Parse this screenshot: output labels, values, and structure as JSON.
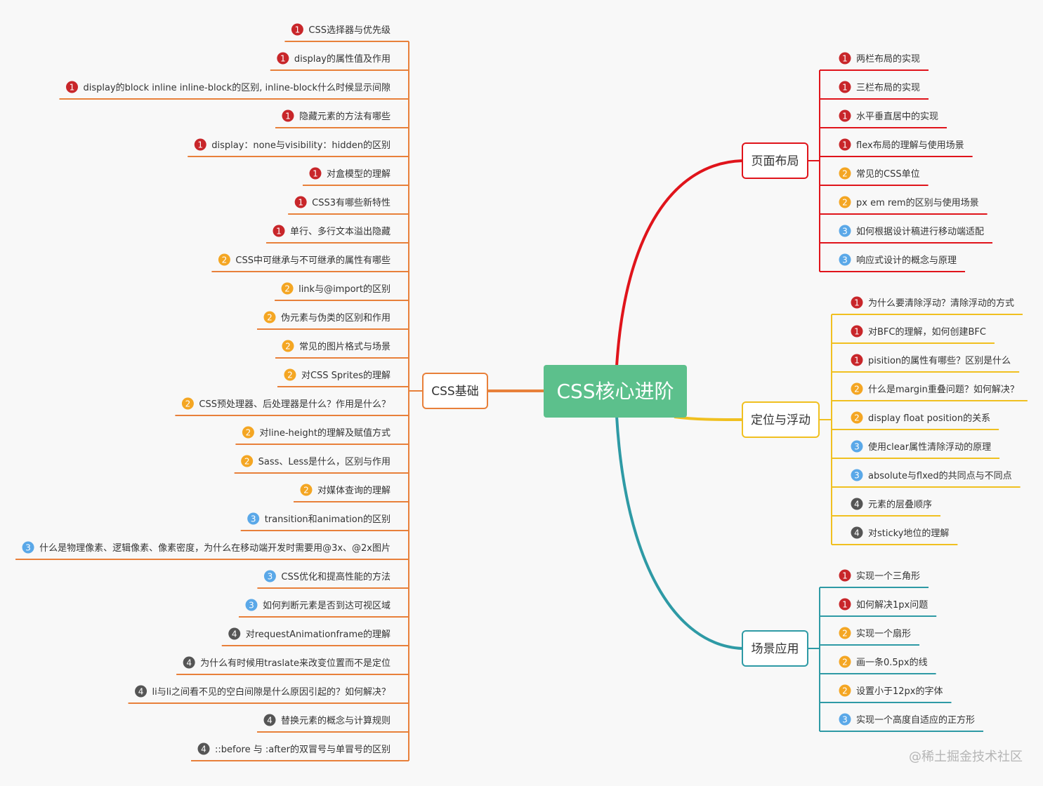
{
  "root": {
    "label": "CSS核心进阶",
    "color": "#5cc08c"
  },
  "colors": {
    "p1": "#c8262a",
    "p2": "#f4a623",
    "p3": "#5aa8e8",
    "p4": "#555555",
    "left_branch": "#e8803a",
    "layout_branch": "#e0141b",
    "float_branch": "#f0c020",
    "scene_branch": "#2e9aa5"
  },
  "left": {
    "label": "CSS基础",
    "items": [
      {
        "p": "1",
        "text": "CSS选择器与优先级"
      },
      {
        "p": "1",
        "text": "display的属性值及作用"
      },
      {
        "p": "1",
        "text": "display的block inline inline-block的区别, inline-block什么时候显示间隙"
      },
      {
        "p": "1",
        "text": "隐藏元素的方法有哪些"
      },
      {
        "p": "1",
        "text": "display：none与visibility：hidden的区别"
      },
      {
        "p": "1",
        "text": "对盒模型的理解"
      },
      {
        "p": "1",
        "text": "CSS3有哪些新特性"
      },
      {
        "p": "1",
        "text": "单行、多行文本溢出隐藏"
      },
      {
        "p": "2",
        "text": "CSS中可继承与不可继承的属性有哪些"
      },
      {
        "p": "2",
        "text": "link与@import的区别"
      },
      {
        "p": "2",
        "text": "伪元素与伪类的区别和作用"
      },
      {
        "p": "2",
        "text": "常见的图片格式与场景"
      },
      {
        "p": "2",
        "text": "对CSS Sprites的理解"
      },
      {
        "p": "2",
        "text": "CSS预处理器、后处理器是什么？作用是什么？"
      },
      {
        "p": "2",
        "text": "对line-height的理解及赋值方式"
      },
      {
        "p": "2",
        "text": "Sass、Less是什么，区别与作用"
      },
      {
        "p": "2",
        "text": "对媒体查询的理解"
      },
      {
        "p": "3",
        "text": "transition和animation的区别"
      },
      {
        "p": "3",
        "text": "什么是物理像素、逻辑像素、像素密度，为什么在移动端开发时需要用@3x、@2x图片"
      },
      {
        "p": "3",
        "text": "CSS优化和提高性能的方法"
      },
      {
        "p": "3",
        "text": "如何判断元素是否到达可视区域"
      },
      {
        "p": "4",
        "text": "对requestAnimationframe的理解"
      },
      {
        "p": "4",
        "text": "为什么有时候用traslate来改变位置而不是定位"
      },
      {
        "p": "4",
        "text": "li与li之间看不见的空白间隙是什么原因引起的？如何解决？"
      },
      {
        "p": "4",
        "text": "替换元素的概念与计算规则"
      },
      {
        "p": "4",
        "text": "::before 与 :after的双冒号与单冒号的区别"
      }
    ]
  },
  "right": [
    {
      "label": "页面布局",
      "items": [
        {
          "p": "1",
          "text": "两栏布局的实现"
        },
        {
          "p": "1",
          "text": "三栏布局的实现"
        },
        {
          "p": "1",
          "text": "水平垂直居中的实现"
        },
        {
          "p": "1",
          "text": "flex布局的理解与使用场景"
        },
        {
          "p": "2",
          "text": "常见的CSS单位"
        },
        {
          "p": "2",
          "text": "px em rem的区别与使用场景"
        },
        {
          "p": "3",
          "text": "如何根据设计稿进行移动端适配"
        },
        {
          "p": "3",
          "text": "响应式设计的概念与原理"
        }
      ]
    },
    {
      "label": "定位与浮动",
      "items": [
        {
          "p": "1",
          "text": "为什么要清除浮动？清除浮动的方式"
        },
        {
          "p": "1",
          "text": "对BFC的理解，如何创建BFC"
        },
        {
          "p": "1",
          "text": "pisition的属性有哪些？区别是什么"
        },
        {
          "p": "2",
          "text": "什么是margin重叠问题？如何解决？"
        },
        {
          "p": "2",
          "text": "display float position的关系"
        },
        {
          "p": "3",
          "text": "使用clear属性清除浮动的原理"
        },
        {
          "p": "3",
          "text": "absolute与flxed的共同点与不同点"
        },
        {
          "p": "4",
          "text": "元素的层叠顺序"
        },
        {
          "p": "4",
          "text": "对sticky地位的理解"
        }
      ]
    },
    {
      "label": "场景应用",
      "items": [
        {
          "p": "1",
          "text": "实现一个三角形"
        },
        {
          "p": "1",
          "text": "如何解决1px问题"
        },
        {
          "p": "2",
          "text": "实现一个扇形"
        },
        {
          "p": "2",
          "text": "画一条0.5px的线"
        },
        {
          "p": "2",
          "text": "设置小于12px的字体"
        },
        {
          "p": "3",
          "text": "实现一个高度自适应的正方形"
        }
      ]
    }
  ],
  "watermark": "@稀土掘金技术社区"
}
